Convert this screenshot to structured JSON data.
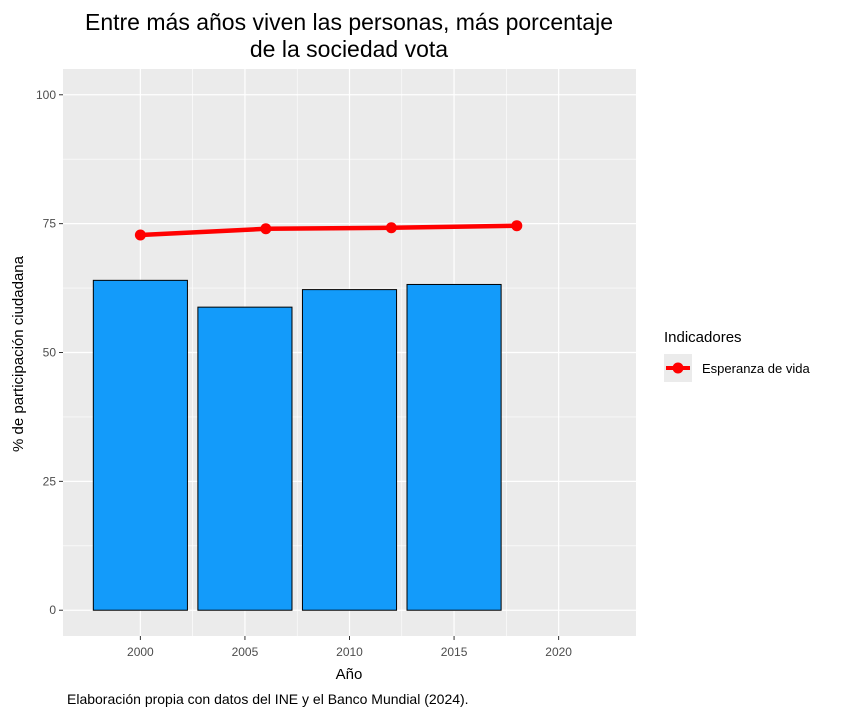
{
  "chart_data": {
    "type": "bar",
    "title_lines": [
      "Entre más años viven las personas, más porcentaje",
      "de la sociedad vota"
    ],
    "xlabel": "Año",
    "ylabel": "% de participación ciudadana",
    "xlim": [
      1996.3,
      2023.7
    ],
    "ylim": [
      -5,
      105
    ],
    "x_ticks": [
      2000,
      2005,
      2010,
      2015,
      2020
    ],
    "y_ticks": [
      0,
      25,
      50,
      75,
      100
    ],
    "grid": true,
    "bars": {
      "x": [
        2000,
        2005,
        2010,
        2015
      ],
      "values": [
        64,
        58.8,
        62.2,
        63.2
      ],
      "fill": "#139bfa",
      "stroke": "#000000",
      "width_years": 4.5
    },
    "series": [
      {
        "name": "Esperanza de vida",
        "type": "line",
        "x": [
          2000,
          2006,
          2012,
          2018
        ],
        "values": [
          72.8,
          74,
          74.2,
          74.6
        ],
        "color": "#ff0000"
      }
    ],
    "legend": {
      "title": "Indicadores",
      "position": "right"
    },
    "caption": "Elaboración propia con datos del INE y el Banco Mundial (2024).",
    "colors": {
      "panel": "#ebebeb",
      "grid": "#ffffff",
      "bar": "#139bfa",
      "line": "#ff0000"
    }
  }
}
